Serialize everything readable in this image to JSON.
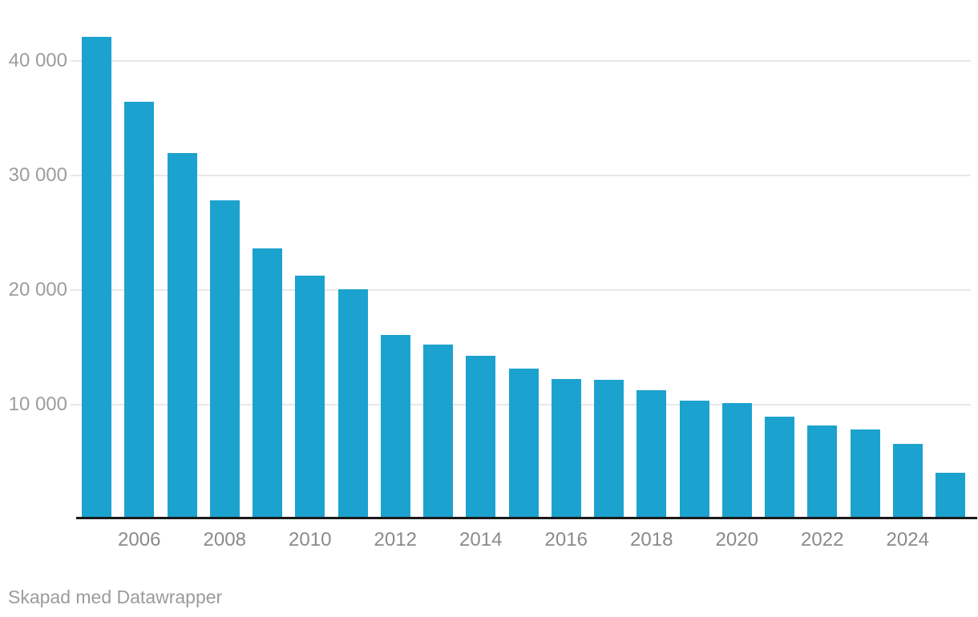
{
  "chart_data": {
    "type": "bar",
    "title": "",
    "xlabel": "",
    "ylabel": "",
    "categories": [
      2005,
      2006,
      2007,
      2008,
      2009,
      2010,
      2011,
      2012,
      2013,
      2014,
      2015,
      2016,
      2017,
      2018,
      2019,
      2020,
      2021,
      2022,
      2023,
      2024,
      2025
    ],
    "values": [
      42100,
      36400,
      31900,
      27800,
      23600,
      21200,
      20000,
      16000,
      15200,
      14200,
      13100,
      12200,
      12100,
      11200,
      10300,
      10100,
      8900,
      8100,
      7800,
      6500,
      4000
    ],
    "x_tick_labels": [
      "2006",
      "2008",
      "2010",
      "2012",
      "2014",
      "2016",
      "2018",
      "2020",
      "2022",
      "2024"
    ],
    "y_ticks": [
      10000,
      20000,
      30000,
      40000
    ],
    "y_tick_labels": [
      "10 000",
      "20 000",
      "30 000",
      "40 000"
    ],
    "ylim": [
      0,
      45300
    ],
    "grid": "horizontal",
    "legend": "none",
    "bar_color": "#1ca2ce"
  },
  "colors": {
    "bar": "#1ca2ce",
    "axis_line": "#1a1a1a",
    "gridline": "#e8e8e8",
    "y_label": "#9d9d9d",
    "x_label": "#8a8a8a",
    "footer": "#9b9b9b",
    "background": "#ffffff"
  },
  "footer": {
    "credit": "Skapad med Datawrapper"
  }
}
